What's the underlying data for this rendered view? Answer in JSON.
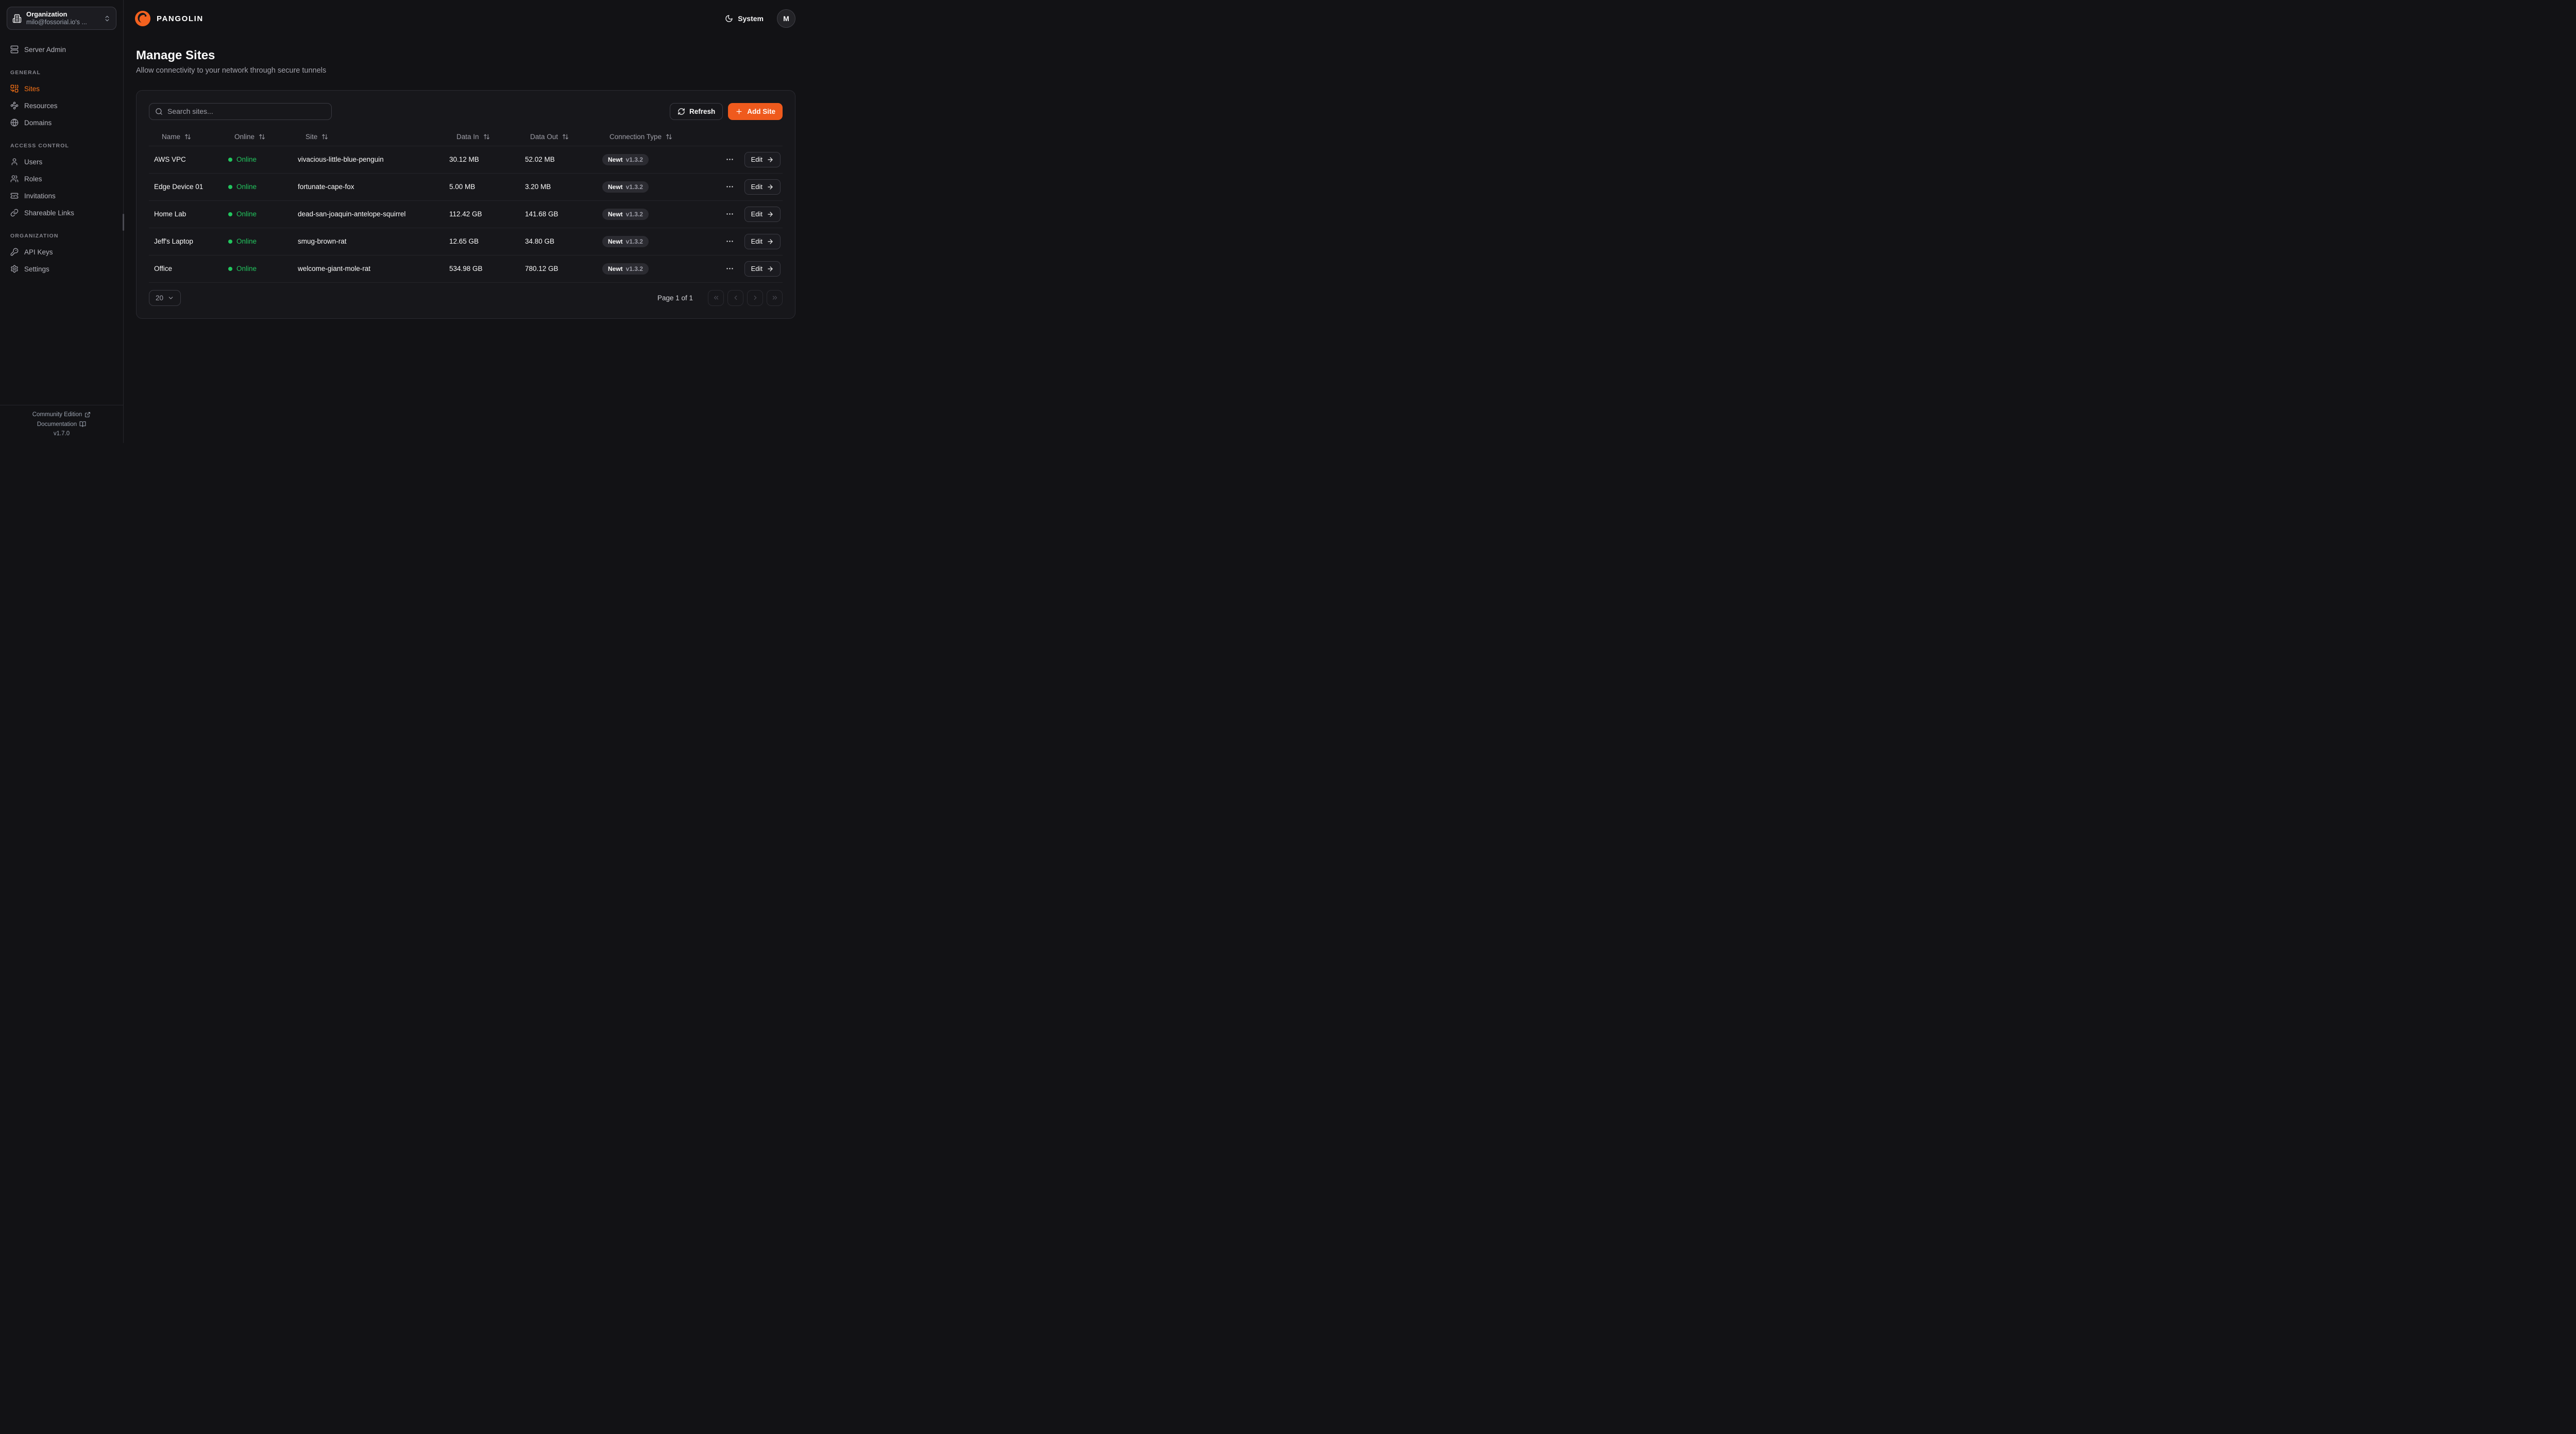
{
  "app": {
    "brand": "PANGOLIN",
    "theme_label": "System",
    "avatar_initial": "M"
  },
  "org_selector": {
    "label": "Organization",
    "value": "milo@fossorial.io's ..."
  },
  "sidebar": {
    "server_admin": {
      "label": "Server Admin",
      "icon": "server"
    },
    "sections": [
      {
        "heading": "GENERAL",
        "items": [
          {
            "label": "Sites",
            "icon": "combine",
            "active": true
          },
          {
            "label": "Resources",
            "icon": "waypoints",
            "active": false
          },
          {
            "label": "Domains",
            "icon": "globe",
            "active": false
          }
        ]
      },
      {
        "heading": "ACCESS CONTROL",
        "items": [
          {
            "label": "Users",
            "icon": "user",
            "active": false
          },
          {
            "label": "Roles",
            "icon": "users",
            "active": false
          },
          {
            "label": "Invitations",
            "icon": "ticket-check",
            "active": false
          },
          {
            "label": "Shareable Links",
            "icon": "link",
            "active": false
          }
        ]
      },
      {
        "heading": "ORGANIZATION",
        "items": [
          {
            "label": "API Keys",
            "icon": "key",
            "active": false
          },
          {
            "label": "Settings",
            "icon": "settings",
            "active": false
          }
        ]
      }
    ],
    "footer": {
      "community": "Community Edition",
      "documentation": "Documentation",
      "version": "v1.7.0"
    }
  },
  "page": {
    "title": "Manage Sites",
    "subtitle": "Allow connectivity to your network through secure tunnels"
  },
  "toolbar": {
    "search_placeholder": "Search sites...",
    "refresh_label": "Refresh",
    "add_site_label": "Add Site"
  },
  "table": {
    "columns": [
      "Name",
      "Online",
      "Site",
      "Data In",
      "Data Out",
      "Connection Type"
    ],
    "row_action_label": "Edit",
    "rows": [
      {
        "name": "AWS VPC",
        "status": "Online",
        "site": "vivacious-little-blue-penguin",
        "data_in": "30.12 MB",
        "data_out": "52.02 MB",
        "connection_type": "Newt",
        "connection_version": "v1.3.2"
      },
      {
        "name": "Edge Device 01",
        "status": "Online",
        "site": "fortunate-cape-fox",
        "data_in": "5.00 MB",
        "data_out": "3.20 MB",
        "connection_type": "Newt",
        "connection_version": "v1.3.2"
      },
      {
        "name": "Home Lab",
        "status": "Online",
        "site": "dead-san-joaquin-antelope-squirrel",
        "data_in": "112.42 GB",
        "data_out": "141.68 GB",
        "connection_type": "Newt",
        "connection_version": "v1.3.2"
      },
      {
        "name": "Jeff's Laptop",
        "status": "Online",
        "site": "smug-brown-rat",
        "data_in": "12.65 GB",
        "data_out": "34.80 GB",
        "connection_type": "Newt",
        "connection_version": "v1.3.2"
      },
      {
        "name": "Office",
        "status": "Online",
        "site": "welcome-giant-mole-rat",
        "data_in": "534.98 GB",
        "data_out": "780.12 GB",
        "connection_type": "Newt",
        "connection_version": "v1.3.2"
      }
    ]
  },
  "pagination": {
    "page_size": "20",
    "page_info": "Page 1 of 1"
  },
  "colors": {
    "accent": "#ef5a1d",
    "active_nav": "#f97316",
    "online_green": "#22c55e",
    "brand_orange": "#f3611f"
  }
}
